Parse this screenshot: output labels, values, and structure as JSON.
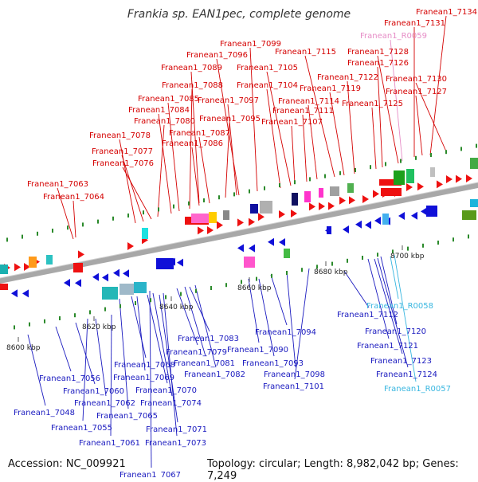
{
  "title": "Frankia sp. EAN1pec, complete genome",
  "accession_text": "Accession: NC_009921",
  "summary_text": "Topology: circular; Length: 8,982,042 bp; Genes: 7,249",
  "colors": {
    "top_label": "#d40000",
    "bottom_label": "#1a1abf",
    "rna_label_top": "#e68cc6",
    "rna_label_bottom": "#38b6e0"
  },
  "tick_labels": [
    "8600 kbp",
    "8620 kbp",
    "8640 kbp",
    "8660 kbp",
    "8680 kbp",
    "8700 kbp"
  ],
  "top_labels": [
    "Franean1_7134",
    "Franean1_7131",
    "Franean1_R0059",
    "Franean1_7099",
    "Franean1_7096",
    "Franean1_7115",
    "Franean1_7128",
    "Franean1_7089",
    "Franean1_7105",
    "Franean1_7126",
    "Franean1_7122",
    "Franean1_7130",
    "Franean1_7088",
    "Franean1_7104",
    "Franean1_7119",
    "Franean1_7127",
    "Franean1_7085",
    "Franean1_7097",
    "Franean1_7114",
    "Franean1_7125",
    "Franean1_7084",
    "Franean1_7111",
    "Franean1_7080",
    "Franean1_7095",
    "Franean1_7107",
    "Franean1_7087",
    "Franean1_7078",
    "Franean1_7086",
    "Franean1_7077",
    "Franean1_7076",
    "Franean1_7063",
    "Franean1_7064"
  ],
  "bottom_labels": [
    "Franean1_R0058",
    "Franean1_7112",
    "Franean1_7120",
    "Franean1_7083",
    "Franean1_7094",
    "Franean1_7121",
    "Franean1_7079",
    "Franean1_7090",
    "Franean1_7123",
    "Franean1_7081",
    "Franean1_7093",
    "Franean1_7068",
    "Franean1_7124",
    "Franean1_7082",
    "Franean1_7098",
    "Franean1_7056",
    "Franean1_7069",
    "Franean1_R0057",
    "Franean1_7101",
    "Franean1_7060",
    "Franean1_7070",
    "Franean1_7062",
    "Franean1_7074",
    "Franean1_7048",
    "Franean1_7065",
    "Franean1_7055",
    "Franean1_7071",
    "Franean1_7061",
    "Franean1_7073",
    "Franean1_7067"
  ]
}
